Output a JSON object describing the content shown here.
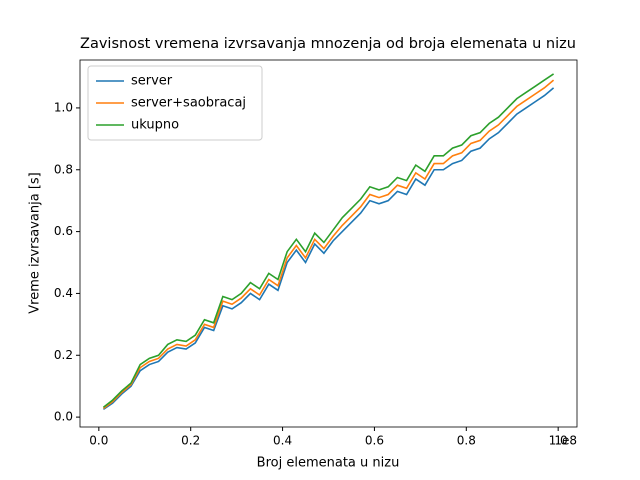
{
  "chart_data": {
    "type": "line",
    "title": "Zavisnost vremena izvrsavanja mnozenja od broja elemenata u nizu",
    "x_label": "Broj elemenata u nizu",
    "y_label": "Vreme izvrsavanja [s]",
    "x_offset_text": "1e8",
    "x": [
      1000000,
      3000000,
      5000000,
      7000000,
      9000000,
      11000000,
      13000000,
      15000000,
      17000000,
      19000000,
      21000000,
      23000000,
      25000000,
      27000000,
      29000000,
      31000000,
      33000000,
      35000000,
      37000000,
      39000000,
      41000000,
      43000000,
      45000000,
      47000000,
      49000000,
      51000000,
      53000000,
      55000000,
      57000000,
      59000000,
      61000000,
      63000000,
      65000000,
      67000000,
      69000000,
      71000000,
      73000000,
      75000000,
      77000000,
      79000000,
      81000000,
      83000000,
      85000000,
      87000000,
      89000000,
      91000000,
      93000000,
      95000000,
      97000000,
      99000000
    ],
    "series": [
      {
        "name": "server",
        "color": "#1f77b4",
        "values": [
          0.025,
          0.045,
          0.075,
          0.1,
          0.15,
          0.17,
          0.18,
          0.21,
          0.225,
          0.22,
          0.24,
          0.29,
          0.28,
          0.36,
          0.35,
          0.37,
          0.4,
          0.38,
          0.43,
          0.41,
          0.5,
          0.54,
          0.5,
          0.56,
          0.53,
          0.57,
          0.6,
          0.63,
          0.66,
          0.7,
          0.69,
          0.7,
          0.73,
          0.72,
          0.77,
          0.75,
          0.8,
          0.8,
          0.82,
          0.83,
          0.86,
          0.87,
          0.9,
          0.92,
          0.95,
          0.98,
          1.0,
          1.02,
          1.04,
          1.065
        ]
      },
      {
        "name": "server+saobracaj",
        "color": "#ff7f0e",
        "values": [
          0.028,
          0.05,
          0.08,
          0.105,
          0.16,
          0.18,
          0.19,
          0.22,
          0.235,
          0.23,
          0.25,
          0.3,
          0.29,
          0.375,
          0.365,
          0.385,
          0.415,
          0.395,
          0.445,
          0.425,
          0.515,
          0.555,
          0.515,
          0.575,
          0.545,
          0.585,
          0.62,
          0.65,
          0.68,
          0.72,
          0.71,
          0.72,
          0.75,
          0.74,
          0.79,
          0.77,
          0.82,
          0.82,
          0.845,
          0.855,
          0.885,
          0.895,
          0.925,
          0.945,
          0.975,
          1.005,
          1.025,
          1.045,
          1.065,
          1.09
        ]
      },
      {
        "name": "ukupno",
        "color": "#2ca02c",
        "values": [
          0.032,
          0.055,
          0.085,
          0.11,
          0.17,
          0.19,
          0.2,
          0.235,
          0.25,
          0.245,
          0.265,
          0.315,
          0.305,
          0.39,
          0.38,
          0.4,
          0.435,
          0.415,
          0.465,
          0.445,
          0.535,
          0.575,
          0.535,
          0.595,
          0.565,
          0.605,
          0.645,
          0.675,
          0.705,
          0.745,
          0.735,
          0.745,
          0.775,
          0.765,
          0.815,
          0.795,
          0.845,
          0.845,
          0.87,
          0.88,
          0.91,
          0.92,
          0.95,
          0.97,
          1.0,
          1.03,
          1.05,
          1.07,
          1.09,
          1.11
        ]
      }
    ],
    "xlim": [
      -4100000,
      104100000
    ],
    "xticks": [
      {
        "value": 0,
        "label": "0.0"
      },
      {
        "value": 20000000,
        "label": "0.2"
      },
      {
        "value": 40000000,
        "label": "0.4"
      },
      {
        "value": 60000000,
        "label": "0.6"
      },
      {
        "value": 80000000,
        "label": "0.8"
      },
      {
        "value": 100000000,
        "label": "1.0"
      }
    ],
    "ylim": [
      -0.032,
      1.155
    ],
    "yticks": [
      {
        "value": 0,
        "label": "0.0"
      },
      {
        "value": 0.2,
        "label": "0.2"
      },
      {
        "value": 0.4,
        "label": "0.4"
      },
      {
        "value": 0.6,
        "label": "0.6"
      },
      {
        "value": 0.8,
        "label": "0.8"
      },
      {
        "value": 1.0,
        "label": "1.0"
      }
    ],
    "legend": "upper left",
    "grid": false
  }
}
